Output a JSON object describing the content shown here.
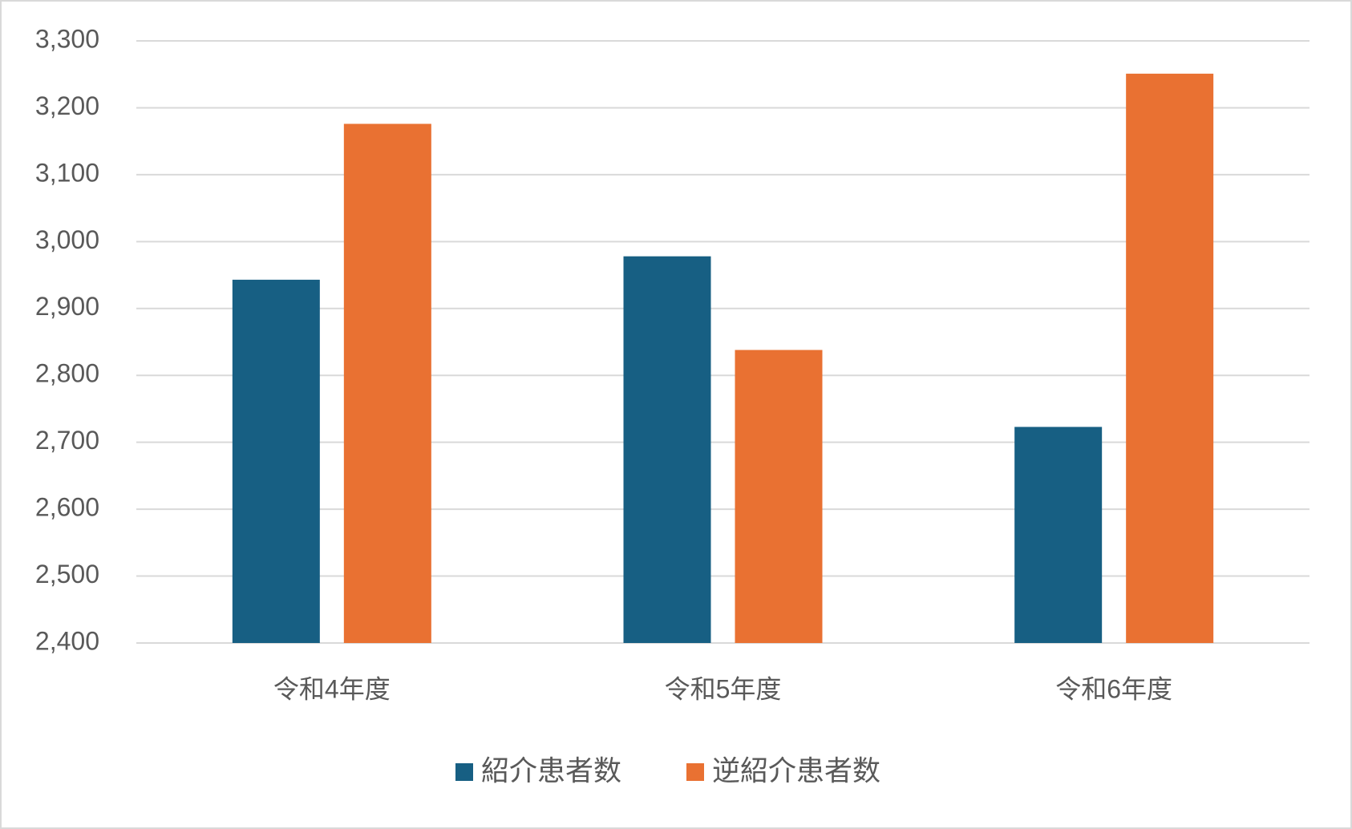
{
  "chart_data": {
    "type": "bar",
    "categories": [
      "令和4年度",
      "令和5年度",
      "令和6年度"
    ],
    "series": [
      {
        "name": "紹介患者数",
        "color": "#175f83",
        "values": [
          2943,
          2978,
          2723
        ]
      },
      {
        "name": "逆紹介患者数",
        "color": "#e97132",
        "values": [
          3176,
          2838,
          3251
        ]
      }
    ],
    "ylim": [
      2400,
      3300
    ],
    "yticks": [
      {
        "value": 2400,
        "label": "2,400"
      },
      {
        "value": 2500,
        "label": "2,500"
      },
      {
        "value": 2600,
        "label": "2,600"
      },
      {
        "value": 2700,
        "label": "2,700"
      },
      {
        "value": 2800,
        "label": "2,800"
      },
      {
        "value": 2900,
        "label": "2,900"
      },
      {
        "value": 3000,
        "label": "3,000"
      },
      {
        "value": 3100,
        "label": "3,100"
      },
      {
        "value": 3200,
        "label": "3,200"
      },
      {
        "value": 3300,
        "label": "3,300"
      }
    ],
    "grid": true,
    "legend": "bottom"
  }
}
